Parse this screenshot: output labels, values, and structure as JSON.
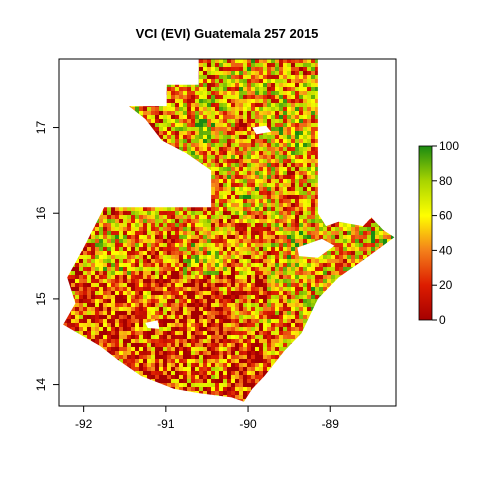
{
  "chart_data": {
    "type": "heatmap",
    "title": "VCI (EVI) Guatemala 257 2015",
    "xlabel": "",
    "ylabel": "",
    "xlim": [
      -92.3,
      -88.2
    ],
    "ylim": [
      13.75,
      17.8
    ],
    "x_ticks": [
      {
        "value": -92,
        "label": "-92"
      },
      {
        "value": -91,
        "label": "-91"
      },
      {
        "value": -90,
        "label": "-90"
      },
      {
        "value": -89,
        "label": "-89"
      }
    ],
    "y_ticks": [
      {
        "value": 14,
        "label": "14"
      },
      {
        "value": 15,
        "label": "15"
      },
      {
        "value": 16,
        "label": "16"
      },
      {
        "value": 17,
        "label": "17"
      }
    ],
    "colorbar": {
      "min": 0,
      "max": 100,
      "ticks": [
        {
          "value": 0,
          "label": "0"
        },
        {
          "value": 20,
          "label": "20"
        },
        {
          "value": 40,
          "label": "40"
        },
        {
          "value": 60,
          "label": "60"
        },
        {
          "value": 80,
          "label": "80"
        },
        {
          "value": 100,
          "label": "100"
        }
      ],
      "colors": [
        "#a50000",
        "#dd1c00",
        "#f4801a",
        "#ffff00",
        "#a8d400",
        "#1a8a12"
      ]
    },
    "region_outline": [
      [
        -90.6,
        17.8
      ],
      [
        -89.15,
        17.8
      ],
      [
        -89.15,
        17.0
      ],
      [
        -89.15,
        16.0
      ],
      [
        -89.05,
        15.85
      ],
      [
        -88.9,
        15.9
      ],
      [
        -88.6,
        15.85
      ],
      [
        -88.5,
        15.95
      ],
      [
        -88.35,
        15.8
      ],
      [
        -88.22,
        15.72
      ],
      [
        -88.6,
        15.45
      ],
      [
        -88.9,
        15.25
      ],
      [
        -89.15,
        15.0
      ],
      [
        -89.35,
        14.6
      ],
      [
        -89.55,
        14.4
      ],
      [
        -89.8,
        14.1
      ],
      [
        -89.95,
        13.95
      ],
      [
        -90.05,
        13.8
      ],
      [
        -90.2,
        13.85
      ],
      [
        -90.6,
        13.9
      ],
      [
        -90.9,
        13.95
      ],
      [
        -91.3,
        14.1
      ],
      [
        -91.6,
        14.3
      ],
      [
        -91.8,
        14.45
      ],
      [
        -92.25,
        14.7
      ],
      [
        -92.1,
        14.95
      ],
      [
        -92.2,
        15.25
      ],
      [
        -92.0,
        15.6
      ],
      [
        -91.75,
        16.07
      ],
      [
        -90.45,
        16.07
      ],
      [
        -90.45,
        16.5
      ],
      [
        -90.6,
        16.6
      ],
      [
        -90.75,
        16.7
      ],
      [
        -91.05,
        16.85
      ],
      [
        -91.25,
        17.1
      ],
      [
        -91.45,
        17.25
      ],
      [
        -90.99,
        17.25
      ],
      [
        -90.99,
        17.5
      ],
      [
        -90.6,
        17.5
      ]
    ],
    "water_bodies": [
      [
        [
          -89.95,
          17.0
        ],
        [
          -89.78,
          17.02
        ],
        [
          -89.72,
          16.95
        ],
        [
          -89.9,
          16.92
        ]
      ],
      [
        [
          -89.4,
          15.6
        ],
        [
          -89.1,
          15.7
        ],
        [
          -88.95,
          15.62
        ],
        [
          -89.15,
          15.48
        ],
        [
          -89.38,
          15.5
        ]
      ],
      [
        [
          -91.25,
          14.72
        ],
        [
          -91.1,
          14.75
        ],
        [
          -91.08,
          14.65
        ],
        [
          -91.22,
          14.66
        ]
      ]
    ]
  }
}
